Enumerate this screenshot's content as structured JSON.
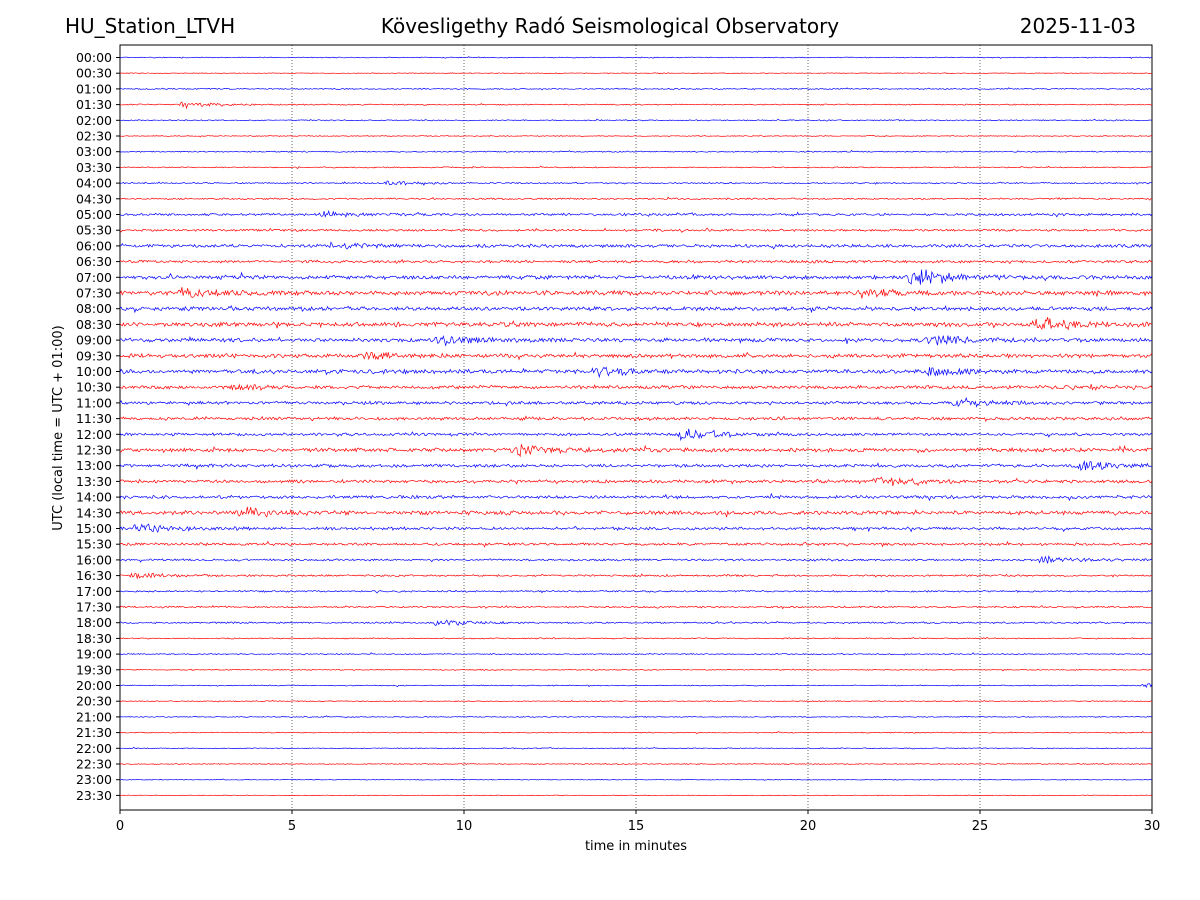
{
  "header": {
    "station": "HU_Station_LTVH",
    "observatory": "Kövesligethy Radó Seismological Observatory",
    "date": "2025-11-03"
  },
  "chart_data": {
    "type": "line",
    "title": "Kövesligethy Radó Seismological Observatory",
    "xlabel": "time in minutes",
    "ylabel": "UTC (local time = UTC + 01:00)",
    "xlim": [
      0,
      30
    ],
    "xticks": [
      0,
      5,
      10,
      15,
      20,
      25,
      30
    ],
    "grid_x": true,
    "trace_colors": [
      "#0000ff",
      "#ff0000"
    ],
    "rows": [
      "00:00",
      "00:30",
      "01:00",
      "01:30",
      "02:00",
      "02:30",
      "03:00",
      "03:30",
      "04:00",
      "04:30",
      "05:00",
      "05:30",
      "06:00",
      "06:30",
      "07:00",
      "07:30",
      "08:00",
      "08:30",
      "09:00",
      "09:30",
      "10:00",
      "10:30",
      "11:00",
      "11:30",
      "12:00",
      "12:30",
      "13:00",
      "13:30",
      "14:00",
      "14:30",
      "15:00",
      "15:30",
      "16:00",
      "16:30",
      "17:00",
      "17:30",
      "18:00",
      "18:30",
      "19:00",
      "19:30",
      "20:00",
      "20:30",
      "21:00",
      "21:30",
      "22:00",
      "22:30",
      "23:00",
      "23:30"
    ],
    "noise_level": [
      0.4,
      0.3,
      0.5,
      0.5,
      0.5,
      0.4,
      0.5,
      0.5,
      0.6,
      0.7,
      1.0,
      0.9,
      1.3,
      1.1,
      1.6,
      1.9,
      1.6,
      1.9,
      1.6,
      1.6,
      1.7,
      1.4,
      1.3,
      1.3,
      1.2,
      1.6,
      1.3,
      1.3,
      1.3,
      1.6,
      1.2,
      1.1,
      0.9,
      0.8,
      0.7,
      0.7,
      0.7,
      0.5,
      0.5,
      0.4,
      0.4,
      0.4,
      0.4,
      0.4,
      0.4,
      0.4,
      0.3,
      0.3
    ],
    "events": [
      {
        "row": "01:30",
        "minute": 1.8,
        "amplitude": 3.5
      },
      {
        "row": "04:00",
        "minute": 7.8,
        "amplitude": 3.0
      },
      {
        "row": "05:00",
        "minute": 5.9,
        "amplitude": 3.0
      },
      {
        "row": "06:00",
        "minute": 6.5,
        "amplitude": 3.0
      },
      {
        "row": "07:00",
        "minute": 23.0,
        "amplitude": 11.0
      },
      {
        "row": "07:30",
        "minute": 1.8,
        "amplitude": 5.0
      },
      {
        "row": "07:30",
        "minute": 21.5,
        "amplitude": 4.5
      },
      {
        "row": "08:30",
        "minute": 26.6,
        "amplitude": 9.0
      },
      {
        "row": "09:00",
        "minute": 9.3,
        "amplitude": 5.0
      },
      {
        "row": "09:00",
        "minute": 23.5,
        "amplitude": 7.0
      },
      {
        "row": "09:30",
        "minute": 7.2,
        "amplitude": 4.0
      },
      {
        "row": "10:00",
        "minute": 13.8,
        "amplitude": 5.0
      },
      {
        "row": "10:00",
        "minute": 23.5,
        "amplitude": 5.0
      },
      {
        "row": "10:30",
        "minute": 3.2,
        "amplitude": 4.0
      },
      {
        "row": "11:00",
        "minute": 24.3,
        "amplitude": 5.0
      },
      {
        "row": "12:00",
        "minute": 16.3,
        "amplitude": 7.0
      },
      {
        "row": "12:30",
        "minute": 11.5,
        "amplitude": 6.5
      },
      {
        "row": "13:00",
        "minute": 27.9,
        "amplitude": 6.0
      },
      {
        "row": "13:30",
        "minute": 22.0,
        "amplitude": 6.0
      },
      {
        "row": "14:30",
        "minute": 3.5,
        "amplitude": 5.5
      },
      {
        "row": "15:00",
        "minute": 0.5,
        "amplitude": 6.5
      },
      {
        "row": "16:00",
        "minute": 26.8,
        "amplitude": 4.0
      },
      {
        "row": "16:30",
        "minute": 0.4,
        "amplitude": 4.0
      },
      {
        "row": "18:00",
        "minute": 9.2,
        "amplitude": 4.0
      },
      {
        "row": "20:00",
        "minute": 29.8,
        "amplitude": 2.5
      }
    ]
  }
}
